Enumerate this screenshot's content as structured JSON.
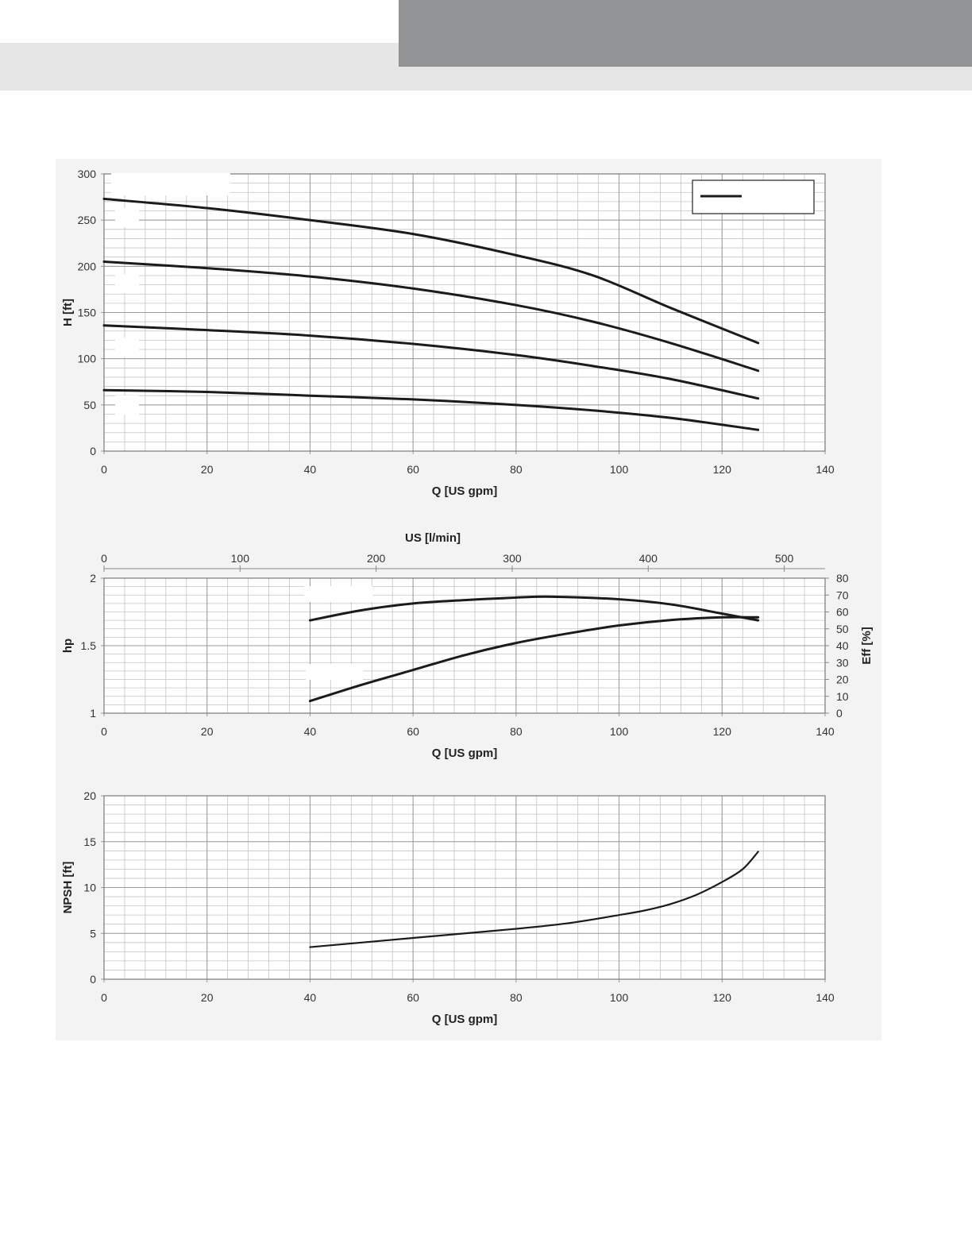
{
  "chart_data": [
    {
      "type": "line",
      "id": "head",
      "xlabel": "Q [US gpm]",
      "ylabel": "H [ft]",
      "xlim": [
        0,
        140
      ],
      "ylim": [
        0,
        300
      ],
      "xticks": [
        0,
        20,
        40,
        60,
        80,
        100,
        120,
        140
      ],
      "yticks": [
        0,
        50,
        100,
        150,
        200,
        250,
        300
      ],
      "grid": true,
      "legend": "top-right",
      "series": [
        {
          "x": [
            0,
            20,
            40,
            60,
            80,
            95,
            110,
            127
          ],
          "y": [
            273,
            263,
            250,
            235,
            212,
            190,
            155,
            117
          ]
        },
        {
          "x": [
            0,
            20,
            40,
            60,
            80,
            95,
            110,
            127
          ],
          "y": [
            205,
            198,
            189,
            176,
            158,
            140,
            117,
            87
          ]
        },
        {
          "x": [
            0,
            20,
            40,
            60,
            80,
            95,
            110,
            127
          ],
          "y": [
            136,
            131,
            125,
            116,
            104,
            92,
            78,
            57
          ]
        },
        {
          "x": [
            0,
            20,
            40,
            60,
            80,
            95,
            110,
            127
          ],
          "y": [
            66,
            64,
            60,
            56,
            50,
            44,
            36,
            23
          ]
        }
      ]
    },
    {
      "type": "line",
      "id": "power-efficiency",
      "xlabel": "Q [US gpm]",
      "x2label": "US [l/min]",
      "ylabel": "hp",
      "y2label": "Eff  [%]",
      "xlim": [
        0,
        140
      ],
      "x2lim": [
        0,
        530
      ],
      "ylim": [
        1,
        2
      ],
      "y2lim": [
        0,
        80
      ],
      "xticks": [
        0,
        20,
        40,
        60,
        80,
        100,
        120,
        140
      ],
      "x2ticks": [
        0,
        100,
        200,
        300,
        400,
        500
      ],
      "yticks": [
        1,
        1.5,
        2
      ],
      "y2ticks": [
        0,
        10,
        20,
        30,
        40,
        50,
        60,
        70,
        80
      ],
      "grid": true,
      "series": [
        {
          "axis": "y2",
          "x": [
            40,
            50,
            60,
            70,
            80,
            87,
            100,
            110,
            120,
            127
          ],
          "y": [
            55,
            61,
            65,
            67,
            68.5,
            69,
            67.5,
            64.5,
            59,
            55
          ]
        },
        {
          "axis": "y",
          "x": [
            40,
            50,
            60,
            70,
            80,
            90,
            100,
            110,
            120,
            127
          ],
          "y": [
            1.09,
            1.21,
            1.32,
            1.43,
            1.52,
            1.59,
            1.65,
            1.69,
            1.71,
            1.71
          ]
        }
      ]
    },
    {
      "type": "line",
      "id": "npsh",
      "xlabel": "Q [US gpm]",
      "ylabel": "NPSH [ft]",
      "xlim": [
        0,
        140
      ],
      "ylim": [
        0,
        20
      ],
      "xticks": [
        0,
        20,
        40,
        60,
        80,
        100,
        120,
        140
      ],
      "yticks": [
        0,
        5,
        10,
        15,
        20
      ],
      "grid": true,
      "series": [
        {
          "x": [
            40,
            60,
            80,
            90,
            100,
            105,
            110,
            115,
            120,
            124,
            127
          ],
          "y": [
            3.5,
            4.5,
            5.5,
            6.1,
            7.0,
            7.5,
            8.2,
            9.2,
            10.6,
            12.0,
            13.9
          ]
        }
      ]
    }
  ]
}
